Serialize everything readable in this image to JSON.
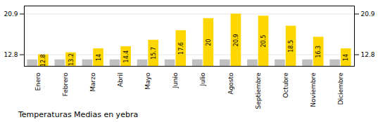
{
  "chart_data": {
    "type": "bar",
    "title": "Temperaturas Medias en yebra",
    "categories": [
      "Enero",
      "Febrero",
      "Marzo",
      "Abril",
      "Mayo",
      "Junio",
      "Julio",
      "Agosto",
      "Septiembre",
      "Octubre",
      "Noviembre",
      "Diciembre"
    ],
    "series": [
      {
        "color": "#C0C0C0",
        "values": [
          11.8,
          11.8,
          11.8,
          11.8,
          11.8,
          11.8,
          11.8,
          11.8,
          11.8,
          11.8,
          11.8,
          11.8
        ]
      },
      {
        "color": "#FFD700",
        "values": [
          12.8,
          13.2,
          14.0,
          14.4,
          15.7,
          17.6,
          20.0,
          20.9,
          20.5,
          18.5,
          16.3,
          14.0
        ],
        "data_labels": true
      }
    ],
    "ylim": [
      10.5,
      22.5
    ],
    "yticks": [
      12.8,
      20.9
    ],
    "grid": true
  }
}
